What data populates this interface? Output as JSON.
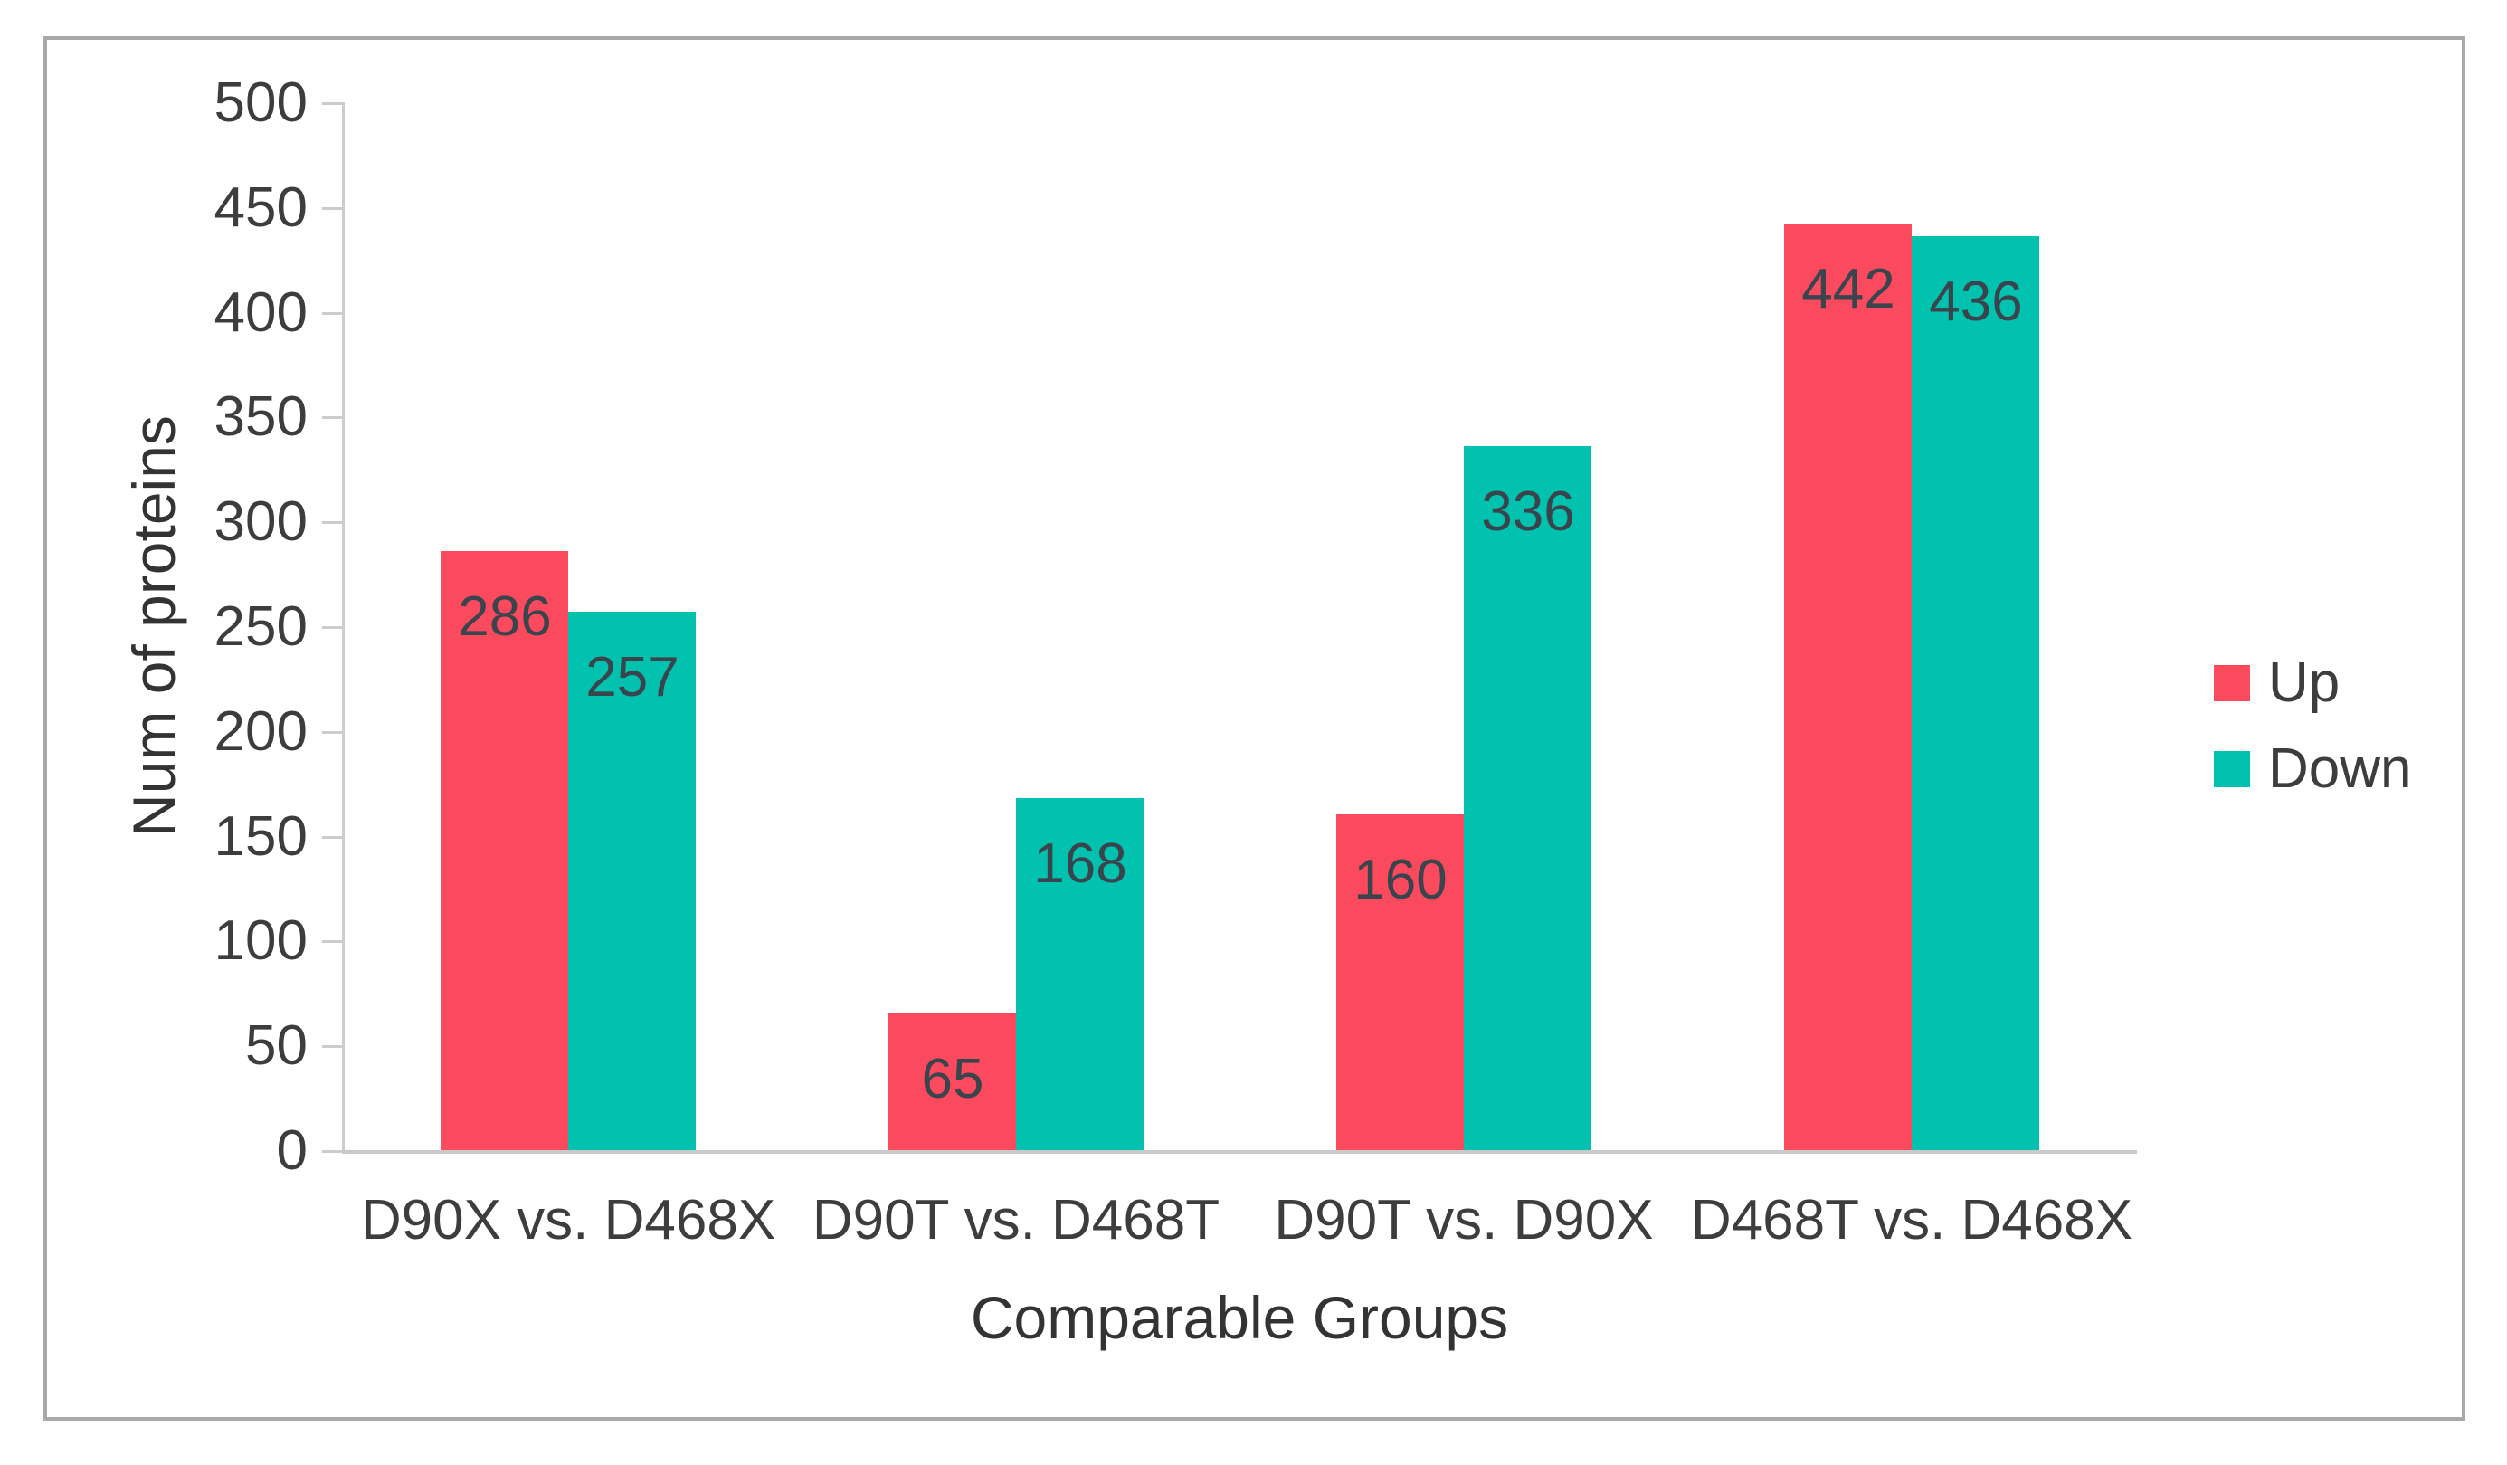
{
  "chart_data": {
    "type": "bar",
    "title": "",
    "categories": [
      "D90X vs. D468X",
      "D90T vs. D468T",
      "D90T vs. D90X",
      "D468T vs. D468X"
    ],
    "series": [
      {
        "name": "Up",
        "color": "#fb4a5d",
        "values": [
          286,
          65,
          160,
          442
        ]
      },
      {
        "name": "Down",
        "color": "#00c2ae",
        "values": [
          257,
          168,
          336,
          436
        ]
      }
    ],
    "data_labels": [
      [
        "286",
        "65",
        "160",
        "442"
      ],
      [
        "257",
        "168",
        "336",
        "436"
      ]
    ],
    "xlabel": "Comparable Groups",
    "ylabel": "Num of proteins",
    "ylim": [
      0,
      500
    ],
    "yticks": [
      "0",
      "50",
      "100",
      "150",
      "200",
      "250",
      "300",
      "350",
      "400",
      "450",
      "500"
    ],
    "grid": false,
    "legend_position": "right",
    "data_labels_shown": true
  },
  "legend": {
    "items": [
      {
        "label": "Up",
        "color": "#fb4a5d"
      },
      {
        "label": "Down",
        "color": "#00c2ae"
      }
    ]
  },
  "colors": {
    "frame_border": "#a9a9a9",
    "axis_line": "#cccccc",
    "tick_text": "#3d3d3d",
    "data_label_text": "#3a444d",
    "up": "#fb4a5d",
    "down": "#00c2ae"
  }
}
